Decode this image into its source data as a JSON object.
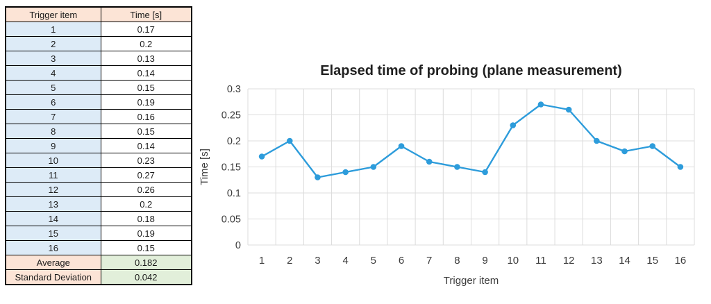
{
  "table": {
    "headers": [
      "Trigger item",
      "Time [s]"
    ],
    "rows": [
      [
        "1",
        "0.17"
      ],
      [
        "2",
        "0.2"
      ],
      [
        "3",
        "0.13"
      ],
      [
        "4",
        "0.14"
      ],
      [
        "5",
        "0.15"
      ],
      [
        "6",
        "0.19"
      ],
      [
        "7",
        "0.16"
      ],
      [
        "8",
        "0.15"
      ],
      [
        "9",
        "0.14"
      ],
      [
        "10",
        "0.23"
      ],
      [
        "11",
        "0.27"
      ],
      [
        "12",
        "0.26"
      ],
      [
        "13",
        "0.2"
      ],
      [
        "14",
        "0.18"
      ],
      [
        "15",
        "0.19"
      ],
      [
        "16",
        "0.15"
      ]
    ],
    "summary": [
      [
        "Average",
        "0.182"
      ],
      [
        "Standard Deviation",
        "0.042"
      ]
    ],
    "colors": {
      "header_bg": "#FCE4D6",
      "item_bg": "#DDEBF7",
      "value_bg": "#FFFFFF",
      "summary_label_bg": "#FCE4D6",
      "summary_value_bg": "#E2EFDA",
      "border": "#000000"
    }
  },
  "chart_data": {
    "type": "line",
    "title": "Elapsed time of probing (plane measurement)",
    "categories": [
      "1",
      "2",
      "3",
      "4",
      "5",
      "6",
      "7",
      "8",
      "9",
      "10",
      "11",
      "12",
      "13",
      "14",
      "15",
      "16"
    ],
    "series": [
      {
        "name": "Time",
        "values": [
          0.17,
          0.2,
          0.13,
          0.14,
          0.15,
          0.19,
          0.16,
          0.15,
          0.14,
          0.23,
          0.27,
          0.26,
          0.2,
          0.18,
          0.19,
          0.15
        ]
      }
    ],
    "xlabel": "Trigger item",
    "ylabel": "Time [s]",
    "ylim": [
      0,
      0.3
    ],
    "ytick_step": 0.05,
    "ytick_labels": [
      "0",
      "0.05",
      "0.1",
      "0.15",
      "0.2",
      "0.25",
      "0.3"
    ],
    "grid": true,
    "legend_position": "none",
    "line_color": "#2D9CDB",
    "marker_color": "#2D9CDB",
    "gridline_color": "#DCDCDC",
    "title_color": "#1f1f1f",
    "tick_color": "#3b3b3b"
  }
}
